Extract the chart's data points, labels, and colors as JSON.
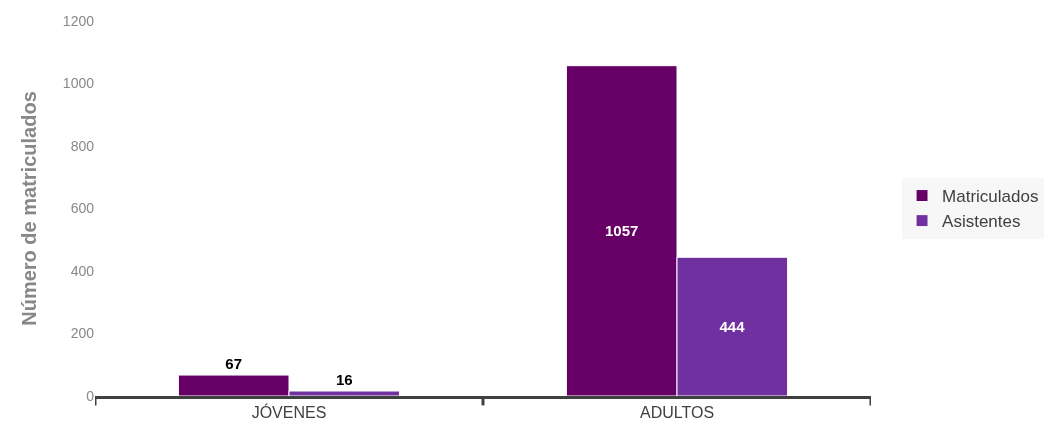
{
  "chart_data": {
    "type": "bar",
    "ylabel": "Número de matriculados",
    "categories": [
      "JÓVENES",
      "ADULTOS"
    ],
    "series": [
      {
        "name": "Matriculados",
        "color": "#660066",
        "values": [
          67,
          1057
        ]
      },
      {
        "name": "Asistentes",
        "color": "#7030a0",
        "values": [
          16,
          444
        ]
      }
    ],
    "ylim": [
      0,
      1200
    ],
    "yticks": [
      0,
      200,
      400,
      600,
      800,
      1000,
      1200
    ],
    "grid": false,
    "legend": "right",
    "data_labels": true
  }
}
